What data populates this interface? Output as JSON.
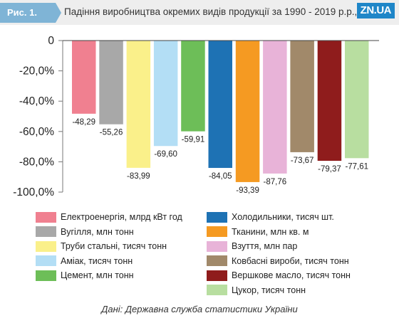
{
  "header": {
    "figure_label": "Рис. 1.",
    "title": "Падіння виробництва окремих видів продукції за 1990 - 2019 р.р., %",
    "logo": "ZN.UA"
  },
  "source": "Дані: Державна служба статистики України",
  "chart_data": {
    "type": "bar",
    "title": "Падіння виробництва окремих видів продукції за 1990 - 2019 р.р., %",
    "xlabel": "",
    "ylabel": "",
    "ylim": [
      -100,
      0
    ],
    "yticks": [
      0,
      -20,
      -40,
      -60,
      -80,
      -100
    ],
    "ytick_labels": [
      "0",
      "-20,0%",
      "-40,0%",
      "-60,0%",
      "-80,0%",
      "-100,0%"
    ],
    "grid": false,
    "legend_position": "bottom",
    "series": [
      {
        "name": "Електроенергія, млрд кВт год",
        "value": -48.29,
        "label": "-48,29",
        "color": "#f08090"
      },
      {
        "name": "Вугілля, млн тонн",
        "value": -55.26,
        "label": "-55,26",
        "color": "#a8a8a8"
      },
      {
        "name": "Труби стальні, тисяч тонн",
        "value": -83.99,
        "label": "-83,99",
        "color": "#faf08a"
      },
      {
        "name": "Аміак, тисяч тонн",
        "value": -69.6,
        "label": "-69,60",
        "color": "#b3def5"
      },
      {
        "name": "Цемент, млн тонн",
        "value": -59.91,
        "label": "-59,91",
        "color": "#6dbe58"
      },
      {
        "name": "Холодильники, тисяч шт.",
        "value": -84.05,
        "label": "-84,05",
        "color": "#1e72b4"
      },
      {
        "name": "Тканини, млн кв. м",
        "value": -93.39,
        "label": "-93,39",
        "color": "#f59a22"
      },
      {
        "name": "Взуття, млн пар",
        "value": -87.76,
        "label": "-87,76",
        "color": "#e8b3d8"
      },
      {
        "name": "Ковбасні вироби, тисяч тонн",
        "value": -73.67,
        "label": "-73,67",
        "color": "#a1896a"
      },
      {
        "name": "Вершкове масло, тисяч тонн",
        "value": -79.37,
        "label": "-79,37",
        "color": "#8f1c1c"
      },
      {
        "name": "Цукор, тисяч тонн",
        "value": -77.61,
        "label": "-77,61",
        "color": "#b8dea0"
      }
    ]
  }
}
